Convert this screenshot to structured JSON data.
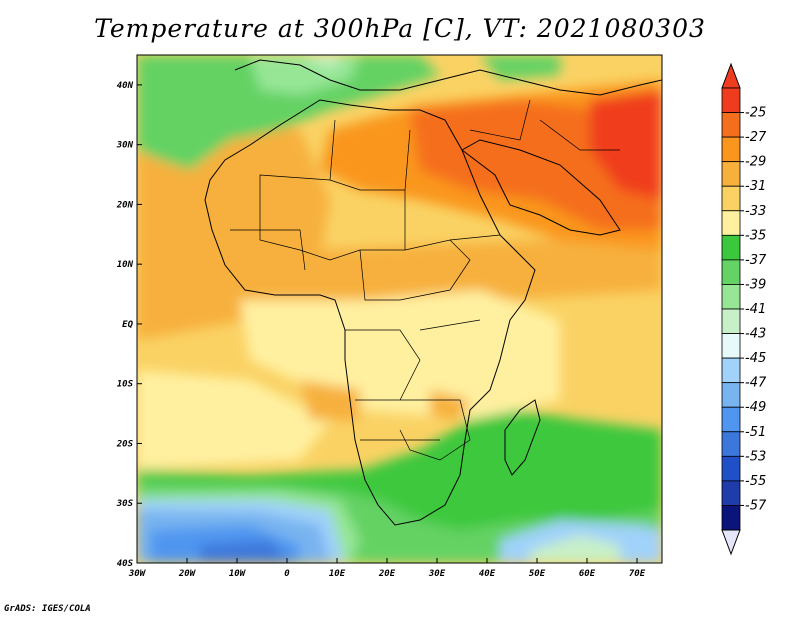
{
  "title": "Temperature at 300hPa [C], VT: 2021080303",
  "credit": "GrADS: IGES/COLA",
  "map": {
    "lon_range": [
      -30,
      75
    ],
    "lat_range": [
      -40,
      45
    ],
    "x_ticks": [
      "30W",
      "20W",
      "10W",
      "0",
      "10E",
      "20E",
      "30E",
      "40E",
      "50E",
      "60E",
      "70E"
    ],
    "y_ticks": [
      "40N",
      "30N",
      "20N",
      "10N",
      "EQ",
      "10S",
      "20S",
      "30S",
      "40S"
    ]
  },
  "colorbar": {
    "labels": [
      "-25",
      "-27",
      "-29",
      "-31",
      "-33",
      "-35",
      "-37",
      "-39",
      "-41",
      "-43",
      "-45",
      "-47",
      "-49",
      "-51",
      "-53",
      "-55",
      "-57"
    ],
    "colors": [
      "#f03c1e",
      "#f56e1e",
      "#fa961e",
      "#f7b03c",
      "#fad264",
      "#fff0a0",
      "#3cc83c",
      "#64d264",
      "#96e696",
      "#c8f0c8",
      "#e6fafa",
      "#a0d2fa",
      "#78b4f0",
      "#5096f0",
      "#3c78dc",
      "#2050c8",
      "#1e3caa",
      "#0a147a"
    ],
    "top_arrow_color": "#f03c1e",
    "bottom_arrow_color": "#e6e6fa"
  }
}
